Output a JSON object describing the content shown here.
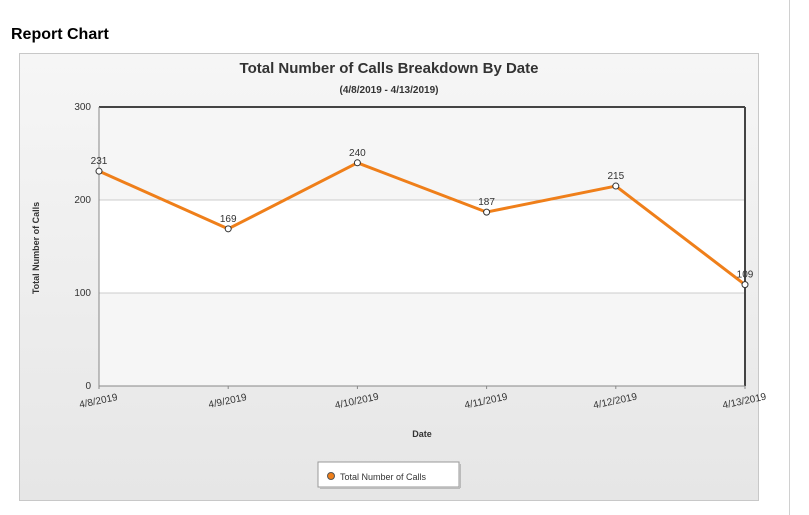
{
  "page": {
    "title": "Report Chart"
  },
  "colors": {
    "series": "#ef7f1a",
    "plot_background": "#f6f6f6",
    "grid": "#cccccc"
  },
  "chart_data": {
    "type": "line",
    "title": "Total Number of Calls Breakdown By Date",
    "subtitle": "(4/8/2019 - 4/13/2019)",
    "xlabel": "Date",
    "ylabel": "Total Number of Calls",
    "ylim": [
      0,
      300
    ],
    "yticks": [
      "0",
      "100",
      "200",
      "300"
    ],
    "grid": true,
    "legend_position": "bottom",
    "categories": [
      "4/8/2019",
      "4/9/2019",
      "4/10/2019",
      "4/11/2019",
      "4/12/2019",
      "4/13/2019"
    ],
    "series": [
      {
        "name": "Total Number of Calls",
        "values": [
          231,
          169,
          240,
          187,
          215,
          109
        ]
      }
    ]
  }
}
